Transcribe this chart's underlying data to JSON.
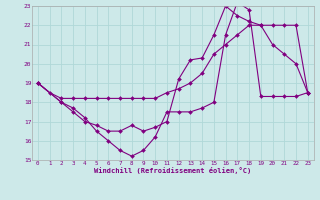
{
  "xlabel": "Windchill (Refroidissement éolien,°C)",
  "xlim": [
    -0.5,
    23.5
  ],
  "ylim": [
    15,
    23
  ],
  "yticks": [
    15,
    16,
    17,
    18,
    19,
    20,
    21,
    22,
    23
  ],
  "xticks": [
    0,
    1,
    2,
    3,
    4,
    5,
    6,
    7,
    8,
    9,
    10,
    11,
    12,
    13,
    14,
    15,
    16,
    17,
    18,
    19,
    20,
    21,
    22,
    23
  ],
  "bg_color": "#cde9e9",
  "line_color": "#800080",
  "grid_color": "#b0d8d8",
  "line1_x": [
    0,
    1,
    2,
    3,
    4,
    5,
    6,
    7,
    8,
    9,
    10,
    11,
    12,
    13,
    14,
    15,
    16,
    17,
    18,
    19,
    20,
    21,
    22,
    23
  ],
  "line1_y": [
    19.0,
    18.5,
    18.2,
    18.2,
    18.2,
    18.2,
    18.2,
    18.2,
    18.2,
    18.2,
    18.2,
    18.5,
    18.7,
    19.0,
    19.5,
    20.5,
    21.0,
    21.5,
    22.0,
    22.0,
    22.0,
    22.0,
    22.0,
    18.5
  ],
  "line2_x": [
    0,
    2,
    3,
    4,
    5,
    6,
    7,
    8,
    9,
    10,
    11,
    12,
    13,
    14,
    15,
    16,
    17,
    18,
    19,
    20,
    21,
    22,
    23
  ],
  "line2_y": [
    19.0,
    18.0,
    17.7,
    17.2,
    16.5,
    16.0,
    15.5,
    15.2,
    15.5,
    16.2,
    17.5,
    17.5,
    17.5,
    17.7,
    18.0,
    21.5,
    23.2,
    22.8,
    18.3,
    18.3,
    18.3,
    18.3,
    18.5
  ],
  "line3_x": [
    0,
    2,
    3,
    4,
    5,
    6,
    7,
    8,
    9,
    10,
    11,
    12,
    13,
    14,
    15,
    16,
    17,
    18,
    19,
    20,
    21,
    22,
    23
  ],
  "line3_y": [
    19.0,
    18.0,
    17.5,
    17.0,
    16.8,
    16.5,
    16.5,
    16.8,
    16.5,
    16.7,
    17.0,
    19.2,
    20.2,
    20.3,
    21.5,
    23.0,
    22.5,
    22.2,
    22.0,
    21.0,
    20.5,
    20.0,
    18.5
  ]
}
